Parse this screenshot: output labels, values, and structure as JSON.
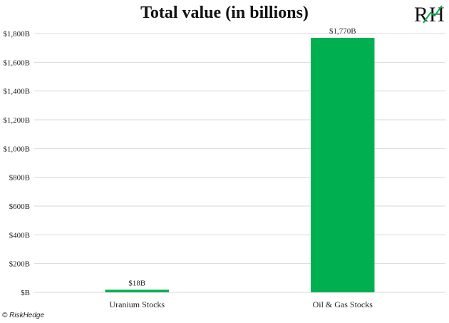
{
  "chart_data": {
    "type": "bar",
    "title": "Total value (in billions)",
    "categories": [
      "Uranium Stocks",
      "Oil & Gas Stocks"
    ],
    "values": [
      18,
      1770
    ],
    "data_labels": [
      "$18B",
      "$1,770B"
    ],
    "ylim": [
      0,
      1800
    ],
    "yticks": [
      0,
      200,
      400,
      600,
      800,
      1000,
      1200,
      1400,
      1600,
      1800
    ],
    "ytick_labels": [
      "$B",
      "$200B",
      "$400B",
      "$600B",
      "$800B",
      "$1,000B",
      "$1,200B",
      "$1,400B",
      "$1,600B",
      "$1,800B"
    ],
    "xlabel": "",
    "ylabel": "",
    "grid": true,
    "bar_color": "#00b050",
    "grid_color": "#d9d9d9"
  },
  "logo": {
    "text": "RH",
    "colors": {
      "letters": "#111111",
      "accent": "#00b050"
    }
  },
  "footer": {
    "copyright": "© RiskHedge"
  }
}
